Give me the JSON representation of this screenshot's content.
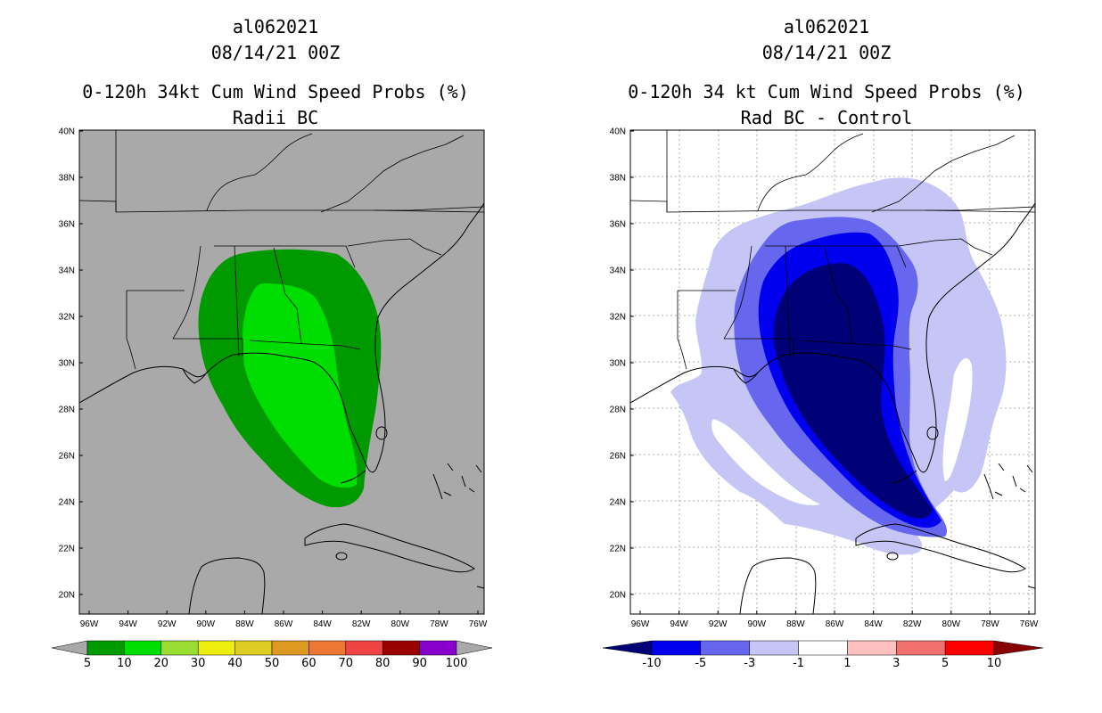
{
  "left_panel": {
    "storm_id": "al062021",
    "date": "08/14/21 00Z",
    "title": "0-120h 34kt Cum Wind Speed Probs (%)",
    "subtitle": "Radii BC",
    "background_color": "#a9a9a9",
    "legend": {
      "colors": [
        "#a9a9a9",
        "#009900",
        "#00dd00",
        "#99dd33",
        "#eeee11",
        "#ddcc22",
        "#dd9922",
        "#ee7733",
        "#ee4444",
        "#990000",
        "#8800cc",
        "#a9a9a9"
      ],
      "labels": [
        "5",
        "10",
        "20",
        "30",
        "40",
        "50",
        "60",
        "70",
        "80",
        "90",
        "100"
      ]
    }
  },
  "right_panel": {
    "storm_id": "al062021",
    "date": "08/14/21 00Z",
    "title": "0-120h 34 kt Cum Wind Speed Probs (%)",
    "subtitle": "Rad BC - Control",
    "background_color": "#ffffff",
    "legend": {
      "colors": [
        "#000077",
        "#0000ee",
        "#6666ee",
        "#c6c6f6",
        "#ffffff",
        "#ffc0c0",
        "#f07070",
        "#ff0000",
        "#880000"
      ],
      "labels": [
        "-10",
        "-5",
        "-3",
        "-1",
        "1",
        "3",
        "5",
        "10"
      ]
    }
  },
  "axes": {
    "lat_labels": [
      "40N",
      "38N",
      "36N",
      "34N",
      "32N",
      "30N",
      "28N",
      "26N",
      "24N",
      "22N",
      "20N"
    ],
    "lon_labels": [
      "96W",
      "94W",
      "92W",
      "90W",
      "88W",
      "86W",
      "84W",
      "82W",
      "80W",
      "78W",
      "76W"
    ]
  },
  "shading": {
    "left": [
      {
        "level": "5-10",
        "color": "#009900"
      },
      {
        "level": "10-20",
        "color": "#00dd00"
      }
    ],
    "right": [
      {
        "level": "-3 to -1",
        "color": "#c6c6f6"
      },
      {
        "level": "-5 to -3",
        "color": "#6666ee"
      },
      {
        "level": "-10 to -5",
        "color": "#0000ee"
      },
      {
        "level": "< -10",
        "color": "#000077"
      }
    ]
  }
}
